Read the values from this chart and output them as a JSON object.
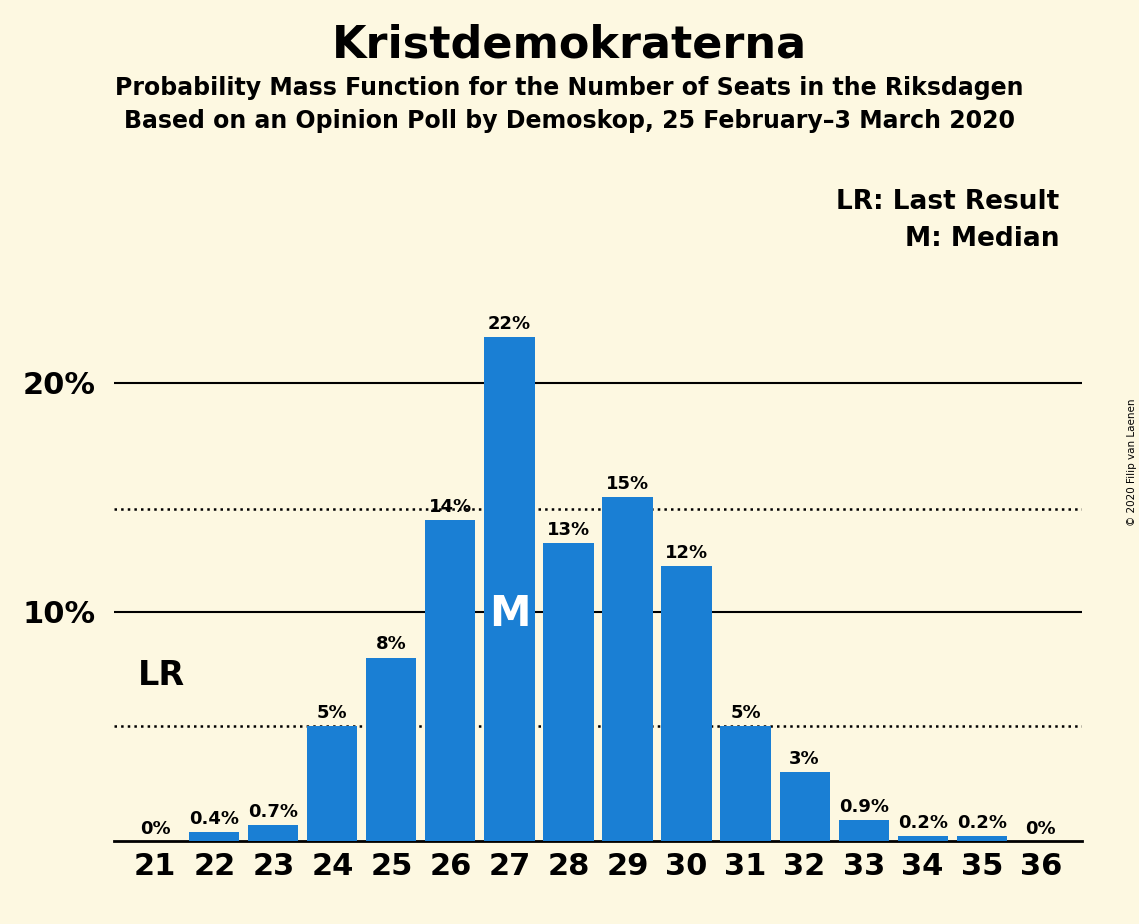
{
  "title": "Kristdemokraterna",
  "subtitle1": "Probability Mass Function for the Number of Seats in the Riksdagen",
  "subtitle2": "Based on an Opinion Poll by Demoskop, 25 February–3 March 2020",
  "copyright": "© 2020 Filip van Laenen",
  "legend_lr": "LR: Last Result",
  "legend_m": "M: Median",
  "seats": [
    21,
    22,
    23,
    24,
    25,
    26,
    27,
    28,
    29,
    30,
    31,
    32,
    33,
    34,
    35,
    36
  ],
  "probabilities": [
    0.0,
    0.4,
    0.7,
    5.0,
    8.0,
    14.0,
    22.0,
    13.0,
    15.0,
    12.0,
    5.0,
    3.0,
    0.9,
    0.2,
    0.2,
    0.0
  ],
  "labels": [
    "0%",
    "0.4%",
    "0.7%",
    "5%",
    "8%",
    "14%",
    "22%",
    "13%",
    "15%",
    "12%",
    "5%",
    "3%",
    "0.9%",
    "0.2%",
    "0.2%",
    "0%"
  ],
  "bar_color": "#1a7fd4",
  "background_color": "#fdf8e1",
  "lr_seat": 22,
  "median_seat": 27,
  "dotted_line1": 5.0,
  "dotted_line2": 14.5,
  "solid_line1": 10.0,
  "solid_line2": 20.0,
  "ylim": [
    0,
    25
  ],
  "title_fontsize": 32,
  "subtitle_fontsize": 17,
  "label_fontsize": 13,
  "tick_fontsize": 22,
  "legend_fontsize": 19,
  "lr_fontsize": 24,
  "median_fontsize": 30,
  "ytick_fontsize": 22
}
